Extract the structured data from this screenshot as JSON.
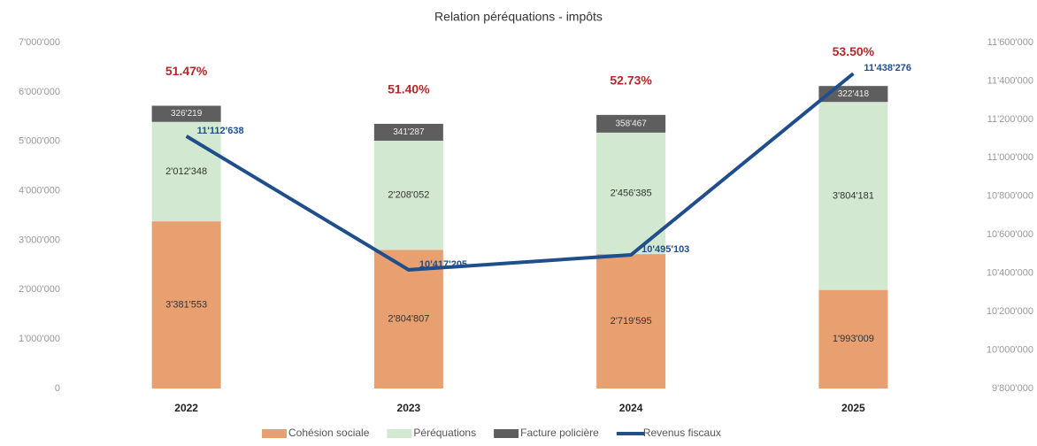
{
  "chart_data": {
    "type": "bar",
    "stacked": true,
    "title": "Relation péréquations - impôts",
    "categories": [
      "2022",
      "2023",
      "2024",
      "2025"
    ],
    "series": [
      {
        "name": "Cohésion sociale",
        "color": "#e8a070",
        "values": [
          3381553,
          2804807,
          2719595,
          1993009
        ],
        "value_labels": [
          "3'381'553",
          "2'804'807",
          "2'719'595",
          "1'993'009"
        ]
      },
      {
        "name": "Péréquations",
        "color": "#d3e8d0",
        "values": [
          2012348,
          2208052,
          2456385,
          3804181
        ],
        "value_labels": [
          "2'012'348",
          "2'208'052",
          "2'456'385",
          "3'804'181"
        ]
      },
      {
        "name": "Facture policière",
        "color": "#5e5e5e",
        "values": [
          326219,
          341287,
          358467,
          322418
        ],
        "value_labels": [
          "326'219",
          "341'287",
          "358'467",
          "322'418"
        ]
      },
      {
        "name": "Revenus fiscaux",
        "type": "line",
        "axis": "y2",
        "color": "#1f4e8c",
        "values": [
          11112638,
          10417205,
          10495103,
          11438276
        ],
        "value_labels": [
          "11'112'638",
          "10'417'205",
          "10'495'103",
          "11'438'276"
        ]
      }
    ],
    "annotations": [
      "51.47%",
      "51.40%",
      "52.73%",
      "53.50%"
    ],
    "ylim": [
      0,
      7000000
    ],
    "yticks": [
      0,
      {
        "value": 1000000,
        "label": "1'000'000"
      },
      {
        "value": 2000000,
        "label": "2'000'000"
      },
      {
        "value": 3000000,
        "label": "3'000'000"
      },
      {
        "value": 4000000,
        "label": "4'000'000"
      },
      {
        "value": 5000000,
        "label": "5'000'000"
      },
      {
        "value": 6000000,
        "label": "6'000'000"
      },
      {
        "value": 7000000,
        "label": "7'000'000"
      }
    ],
    "y2lim": [
      9800000,
      11600000
    ],
    "y2ticks": [
      {
        "value": 9800000,
        "label": "9'800'000"
      },
      {
        "value": 10000000,
        "label": "10'000'000"
      },
      {
        "value": 10200000,
        "label": "10'200'000"
      },
      {
        "value": 10400000,
        "label": "10'400'000"
      },
      {
        "value": 10600000,
        "label": "10'600'000"
      },
      {
        "value": 10800000,
        "label": "10'800'000"
      },
      {
        "value": 11000000,
        "label": "11'000'000"
      },
      {
        "value": 11200000,
        "label": "11'200'000"
      },
      {
        "value": 11400000,
        "label": "11'400'000"
      },
      {
        "value": 11600000,
        "label": "11'600'000"
      }
    ],
    "legend": "bottom"
  }
}
